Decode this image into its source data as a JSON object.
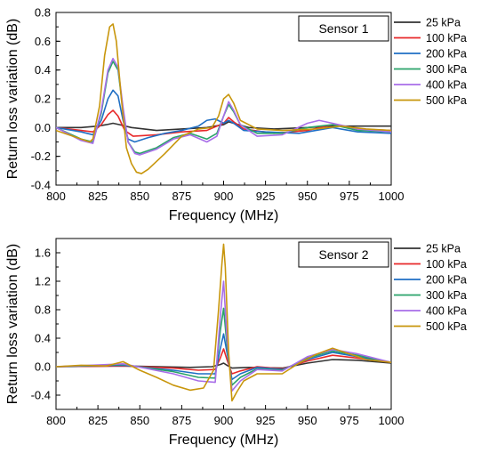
{
  "chart_data": [
    {
      "type": "line",
      "sensor_label": "Sensor 1",
      "xlabel": "Frequency (MHz)",
      "ylabel": "Return loss variation (dB)",
      "xlim": [
        800,
        1000
      ],
      "ylim": [
        -0.4,
        0.8
      ],
      "xticks": [
        800,
        825,
        850,
        875,
        900,
        925,
        950,
        975,
        1000
      ],
      "yticks": [
        -0.4,
        -0.2,
        0.0,
        0.2,
        0.4,
        0.6,
        0.8
      ],
      "xtick_labels": [
        "800",
        "825",
        "850",
        "875",
        "900",
        "925",
        "950",
        "975",
        "1000"
      ],
      "ytick_labels": [
        "-0.4",
        "-0.2",
        "0.0",
        "0.2",
        "0.4",
        "0.6",
        "0.8"
      ],
      "legend_position": "top-right, outside plot",
      "series": [
        {
          "name": "25 kPa",
          "color": "#333333",
          "x": [
            800,
            815,
            825,
            830,
            834,
            838,
            845,
            860,
            875,
            890,
            900,
            903,
            906,
            915,
            930,
            950,
            965,
            980,
            1000
          ],
          "y": [
            0.0,
            0.0,
            0.01,
            0.02,
            0.03,
            0.02,
            0.0,
            -0.02,
            -0.01,
            0.0,
            0.02,
            0.04,
            0.03,
            0.0,
            -0.01,
            0.0,
            0.01,
            0.01,
            0.01
          ]
        },
        {
          "name": "100 kPa",
          "color": "#e8292a",
          "x": [
            800,
            815,
            822,
            827,
            831,
            834,
            837,
            841,
            846,
            860,
            875,
            890,
            900,
            903,
            906,
            912,
            930,
            950,
            965,
            980,
            1000
          ],
          "y": [
            0.0,
            -0.02,
            -0.03,
            0.02,
            0.09,
            0.12,
            0.08,
            -0.02,
            -0.06,
            -0.05,
            -0.03,
            -0.02,
            0.03,
            0.07,
            0.04,
            -0.01,
            -0.04,
            -0.02,
            0.02,
            -0.01,
            -0.02
          ]
        },
        {
          "name": "200 kPa",
          "color": "#1f6fc4",
          "x": [
            800,
            815,
            822,
            827,
            831,
            834,
            837,
            840,
            843,
            847,
            855,
            865,
            875,
            885,
            890,
            895,
            900,
            903,
            906,
            912,
            925,
            945,
            965,
            980,
            1000
          ],
          "y": [
            0.0,
            -0.03,
            -0.05,
            0.05,
            0.2,
            0.26,
            0.22,
            0.05,
            -0.08,
            -0.1,
            -0.07,
            -0.04,
            -0.02,
            0.01,
            0.05,
            0.06,
            0.03,
            0.05,
            0.03,
            -0.02,
            -0.03,
            -0.04,
            0.0,
            -0.03,
            -0.04
          ]
        },
        {
          "name": "300 kPa",
          "color": "#2aa36a",
          "x": [
            800,
            815,
            822,
            827,
            831,
            834,
            837,
            840,
            843,
            847,
            850,
            860,
            870,
            880,
            890,
            896,
            900,
            903,
            906,
            910,
            920,
            935,
            950,
            965,
            980,
            1000
          ],
          "y": [
            0.0,
            -0.08,
            -0.1,
            0.1,
            0.38,
            0.46,
            0.4,
            0.12,
            -0.1,
            -0.17,
            -0.18,
            -0.14,
            -0.07,
            -0.04,
            -0.08,
            -0.04,
            0.08,
            0.16,
            0.11,
            0.02,
            -0.04,
            -0.04,
            0.0,
            0.02,
            -0.02,
            -0.03
          ]
        },
        {
          "name": "400 kPa",
          "color": "#a86ee8",
          "x": [
            800,
            815,
            822,
            827,
            831,
            834,
            837,
            840,
            843,
            847,
            850,
            860,
            870,
            880,
            890,
            896,
            900,
            903,
            906,
            910,
            920,
            935,
            950,
            957,
            965,
            980,
            1000
          ],
          "y": [
            0.0,
            -0.09,
            -0.11,
            0.12,
            0.4,
            0.48,
            0.42,
            0.14,
            -0.1,
            -0.18,
            -0.19,
            -0.15,
            -0.08,
            -0.05,
            -0.1,
            -0.06,
            0.08,
            0.18,
            0.12,
            0.02,
            -0.06,
            -0.05,
            0.03,
            0.05,
            0.03,
            -0.01,
            -0.03
          ]
        },
        {
          "name": "500 kPa",
          "color": "#c8960c",
          "x": [
            800,
            810,
            815,
            820,
            822,
            826,
            829,
            832,
            834,
            836,
            839,
            842,
            845,
            848,
            851,
            855,
            865,
            875,
            885,
            893,
            897,
            900,
            903,
            906,
            910,
            920,
            935,
            955,
            970,
            985,
            1000
          ],
          "y": [
            -0.02,
            -0.06,
            -0.08,
            -0.1,
            -0.08,
            0.15,
            0.5,
            0.7,
            0.72,
            0.6,
            0.2,
            -0.14,
            -0.25,
            -0.31,
            -0.32,
            -0.29,
            -0.18,
            -0.06,
            -0.01,
            0.0,
            0.08,
            0.2,
            0.23,
            0.17,
            0.05,
            -0.01,
            -0.02,
            -0.01,
            0.01,
            -0.01,
            -0.02
          ]
        }
      ]
    },
    {
      "type": "line",
      "sensor_label": "Sensor 2",
      "xlabel": "Frequency (MHz)",
      "ylabel": "Return loss variation (dB)",
      "xlim": [
        800,
        1000
      ],
      "ylim": [
        -0.6,
        1.8
      ],
      "xticks": [
        800,
        825,
        850,
        875,
        900,
        925,
        950,
        975,
        1000
      ],
      "yticks": [
        -0.4,
        0.0,
        0.4,
        0.8,
        1.2,
        1.6
      ],
      "xtick_labels": [
        "800",
        "825",
        "850",
        "875",
        "900",
        "925",
        "950",
        "975",
        "1000"
      ],
      "ytick_labels": [
        "-0.4",
        "0.0",
        "0.4",
        "0.8",
        "1.2",
        "1.6"
      ],
      "legend_position": "top-right, outside plot",
      "series": [
        {
          "name": "25 kPa",
          "color": "#333333",
          "x": [
            800,
            840,
            880,
            893,
            898,
            900,
            902,
            905,
            915,
            935,
            950,
            965,
            980,
            1000
          ],
          "y": [
            0.0,
            0.01,
            -0.01,
            0.0,
            0.03,
            0.05,
            0.02,
            -0.02,
            -0.01,
            -0.02,
            0.05,
            0.1,
            0.09,
            0.05
          ]
        },
        {
          "name": "100 kPa",
          "color": "#e8292a",
          "x": [
            800,
            840,
            870,
            885,
            895,
            898,
            900,
            902,
            905,
            910,
            920,
            935,
            950,
            965,
            980,
            1000
          ],
          "y": [
            0.0,
            0.01,
            -0.02,
            -0.05,
            -0.04,
            0.12,
            0.25,
            0.1,
            -0.1,
            -0.06,
            0.0,
            -0.03,
            0.08,
            0.16,
            0.12,
            0.06
          ]
        },
        {
          "name": "200 kPa",
          "color": "#1f6fc4",
          "x": [
            800,
            840,
            870,
            885,
            895,
            898,
            900,
            902,
            905,
            910,
            920,
            935,
            950,
            965,
            980,
            1000
          ],
          "y": [
            0.0,
            0.02,
            -0.05,
            -0.1,
            -0.1,
            0.25,
            0.46,
            0.2,
            -0.18,
            -0.1,
            -0.01,
            -0.04,
            0.1,
            0.2,
            0.14,
            0.06
          ]
        },
        {
          "name": "300 kPa",
          "color": "#2aa36a",
          "x": [
            800,
            840,
            870,
            885,
            895,
            898,
            900,
            902,
            905,
            910,
            920,
            935,
            950,
            965,
            980,
            1000
          ],
          "y": [
            0.0,
            0.03,
            -0.07,
            -0.15,
            -0.16,
            0.5,
            0.82,
            0.3,
            -0.26,
            -0.15,
            -0.03,
            -0.05,
            0.12,
            0.22,
            0.16,
            0.06
          ]
        },
        {
          "name": "400 kPa",
          "color": "#a86ee8",
          "x": [
            800,
            840,
            870,
            885,
            895,
            898,
            900,
            902,
            905,
            910,
            920,
            935,
            950,
            965,
            980,
            1000
          ],
          "y": [
            0.0,
            0.04,
            -0.1,
            -0.2,
            -0.22,
            0.7,
            1.2,
            0.4,
            -0.34,
            -0.2,
            -0.04,
            -0.06,
            0.14,
            0.24,
            0.18,
            0.06
          ]
        },
        {
          "name": "500 kPa",
          "color": "#c8960c",
          "x": [
            800,
            815,
            830,
            840,
            850,
            860,
            870,
            880,
            888,
            894,
            897,
            899,
            900,
            901,
            903,
            905,
            908,
            912,
            920,
            935,
            945,
            955,
            965,
            975,
            985,
            1000
          ],
          "y": [
            0.0,
            0.02,
            0.01,
            0.07,
            -0.05,
            -0.15,
            -0.26,
            -0.33,
            -0.3,
            -0.05,
            0.8,
            1.45,
            1.72,
            1.4,
            0.2,
            -0.48,
            -0.35,
            -0.2,
            -0.1,
            -0.1,
            0.05,
            0.17,
            0.26,
            0.18,
            0.1,
            0.06
          ]
        }
      ]
    }
  ]
}
